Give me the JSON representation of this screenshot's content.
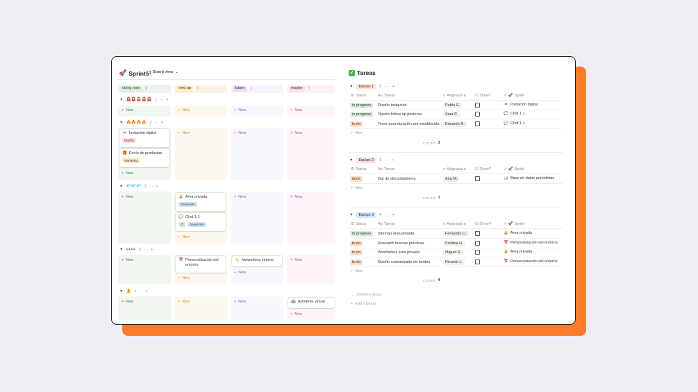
{
  "colors": {
    "accent": "#fa7d2e",
    "window_border": "#1f1f1f"
  },
  "sprints": {
    "title": "Sprints",
    "title_icon": "rocket-icon",
    "view_label": "Board view",
    "columns": [
      {
        "label": "doing now",
        "count": "2"
      },
      {
        "label": "next up",
        "count": "3"
      },
      {
        "label": "future",
        "count": "1"
      },
      {
        "label": "maybe",
        "count": "1"
      }
    ],
    "groups": [
      {
        "label": "🚨🚨🚨🚨🚨",
        "count": "1"
      },
      {
        "label": "🔥🔥🔥🔥",
        "count": "2"
      },
      {
        "label": "💎💎💎",
        "count": "2"
      },
      {
        "label": "👀👀",
        "count": "2"
      },
      {
        "label": "⚠️",
        "count": "1"
      }
    ],
    "new_label": "New",
    "cards": {
      "invitacion": {
        "title": "Invitación digital",
        "tag": "Diseño"
      },
      "envio": {
        "title": "Envío de productos",
        "tag": "Marketing"
      },
      "area_privada": {
        "title": "Área privada",
        "tag": "Desarrollo"
      },
      "chat": {
        "title": "Chat 1:1",
        "tag1": "IT",
        "tag2": "Desarrollo"
      },
      "personalizacion": {
        "title": "Personalización del entorno"
      },
      "networking": {
        "title": "Networking interno"
      },
      "asistente": {
        "title": "Asistente virtual"
      }
    }
  },
  "tareas": {
    "title": "Tareas",
    "title_icon": "check-box-icon",
    "headers": {
      "status": "Status",
      "tareas": "Tareas",
      "asignada": "Asignada a",
      "done": "Done?",
      "sprint": "Sprint"
    },
    "count_label": "COUNT",
    "new_label": "New",
    "teams": [
      {
        "label": "Equipo 1",
        "count": "3",
        "total": "3",
        "rows": [
          {
            "status": "in progress",
            "task": "Diseño invitación",
            "person": "Pablo G.",
            "sprint": "Invitación digital"
          },
          {
            "status": "in progress",
            "task": "Opción follow up posterior",
            "person": "Sara P.",
            "sprint": "Chat 1:1"
          },
          {
            "status": "to do",
            "task": "Timer para duración pre-establecida",
            "person": "Eduardo N.",
            "sprint": "Chat 1:1"
          }
        ]
      },
      {
        "label": "Equipo 2",
        "count": "1",
        "total": "1",
        "rows": [
          {
            "status": "done",
            "task": "Dar de alta plataforma",
            "person": "Ana M.",
            "sprint": "Base de datos periodistas"
          }
        ]
      },
      {
        "label": "Equipo 3",
        "count": "4",
        "total": "4",
        "rows": [
          {
            "status": "in progress",
            "task": "Sitemap área privada",
            "person": "Fernando U.",
            "sprint": "Área privada"
          },
          {
            "status": "to do",
            "task": "Research buenas prácticas",
            "person": "Cristina H.",
            "sprint": "Personalización del entorno"
          },
          {
            "status": "to do",
            "task": "Wireframes área privada",
            "person": "Miguel R.",
            "sprint": "Área privada"
          },
          {
            "status": "to do",
            "task": "Diseño customizado de fondos",
            "person": "Ricardo L.",
            "sprint": "Personalización del entorno"
          }
        ]
      }
    ],
    "hidden_group": "1 hidden group",
    "add_group": "Add a group"
  }
}
